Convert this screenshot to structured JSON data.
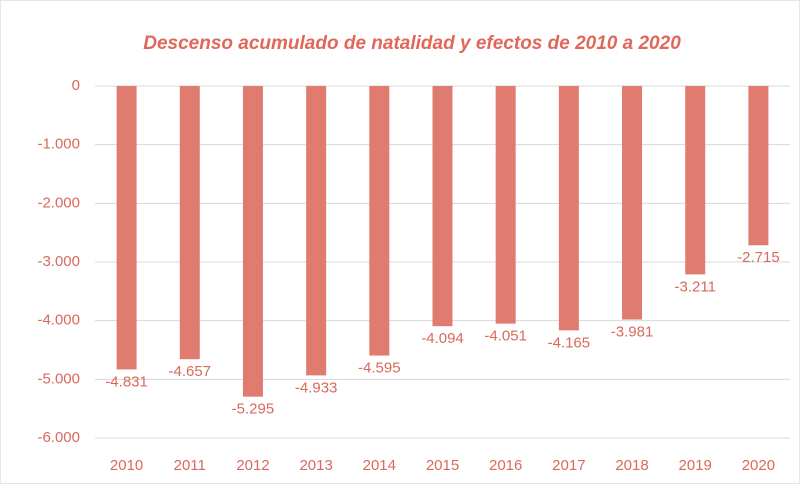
{
  "chart_data": {
    "type": "bar",
    "title": "Descenso acumulado de natalidad y efectos de 2010  a 2020",
    "categories": [
      "2010",
      "2011",
      "2012",
      "2013",
      "2014",
      "2015",
      "2016",
      "2017",
      "2018",
      "2019",
      "2020"
    ],
    "values": [
      -4831,
      -4657,
      -5295,
      -4933,
      -4595,
      -4094,
      -4051,
      -4165,
      -3981,
      -3211,
      -2715
    ],
    "value_labels": [
      "-4.831",
      "-4.657",
      "-5.295",
      "-4.933",
      "-4.595",
      "-4.094",
      "-4.051",
      "-4.165",
      "-3.981",
      "-3.211",
      "-2.715"
    ],
    "color": "#df7c6f",
    "ylim": [
      -6000,
      0
    ],
    "yticks": [
      0,
      {
        "value": -1000,
        "label": "-1.000"
      },
      {
        "value": -2000,
        "label": "-2.000"
      },
      {
        "value": -3000,
        "label": "-3.000"
      },
      {
        "value": -4000,
        "label": "-4.000"
      },
      {
        "value": -5000,
        "label": "-5.000"
      },
      {
        "value": -6000,
        "label": "-6.000"
      }
    ],
    "grid": true
  }
}
